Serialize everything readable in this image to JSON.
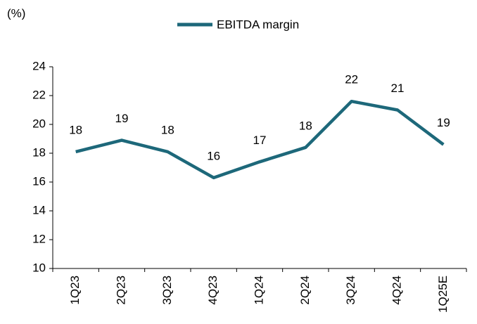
{
  "chart_data": {
    "type": "line",
    "y_label": "(%)",
    "categories": [
      "1Q23",
      "2Q23",
      "3Q23",
      "4Q23",
      "1Q24",
      "2Q24",
      "3Q24",
      "4Q24",
      "1Q25E"
    ],
    "series": [
      {
        "name": "EBITDA margin",
        "color": "#1d687a",
        "values": [
          18.1,
          18.9,
          18.1,
          16.3,
          17.4,
          18.4,
          21.6,
          21.0,
          18.6
        ],
        "value_labels": [
          "18",
          "19",
          "18",
          "16",
          "17",
          "18",
          "22",
          "21",
          "19"
        ]
      }
    ],
    "ylim": [
      10,
      24
    ],
    "yticks": [
      10,
      12,
      14,
      16,
      18,
      20,
      22,
      24
    ],
    "grid": false,
    "legend": "top"
  }
}
